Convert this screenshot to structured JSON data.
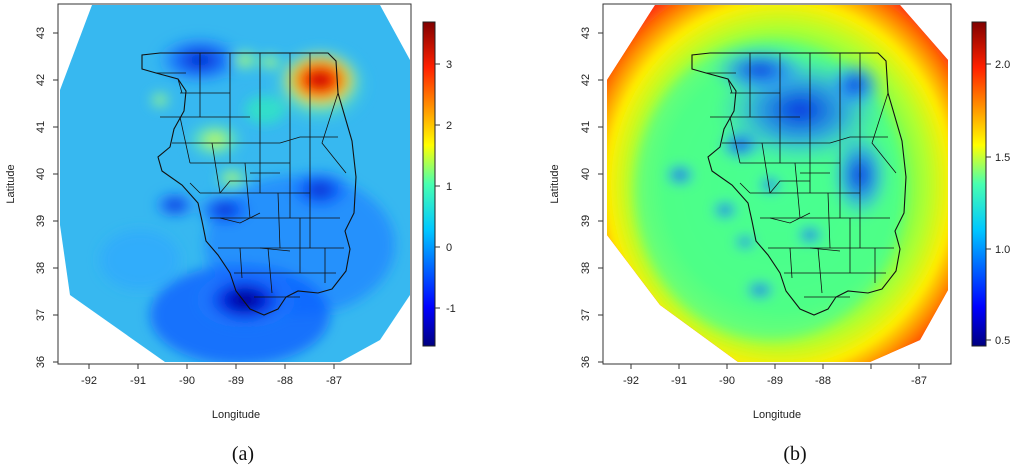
{
  "panels": [
    {
      "id": "a",
      "caption": "(a)",
      "xlabel": "Longitude",
      "ylabel": "Latitude",
      "x_ticks": [
        "-92",
        "-91",
        "-90",
        "-89",
        "-88",
        "-87"
      ],
      "y_ticks": [
        "36",
        "37",
        "38",
        "39",
        "40",
        "41",
        "42",
        "43"
      ],
      "colorbar_ticks": [
        "3",
        "2",
        "1",
        "0",
        "-1"
      ],
      "colorbar_range": [
        -1.7,
        3.6
      ],
      "colormap": "jet",
      "background_color": "#37b8f0"
    },
    {
      "id": "b",
      "caption": "(b)",
      "xlabel": "Longitude",
      "ylabel": "Latitude",
      "x_ticks": [
        "-92",
        "-91",
        "-90",
        "-89",
        "-88",
        "-87"
      ],
      "y_ticks": [
        "36",
        "37",
        "38",
        "39",
        "40",
        "41",
        "42",
        "43"
      ],
      "colorbar_ticks": [
        "2.0",
        "1.5",
        "1.0",
        "0.5"
      ],
      "colorbar_range": [
        0.4,
        2.2
      ],
      "colormap": "jet",
      "background_color": "#ff2a10"
    }
  ],
  "chart_data": [
    {
      "type": "heatmap",
      "title": "",
      "xlabel": "Longitude",
      "ylabel": "Latitude",
      "xlim": [
        -92.4,
        -86.5
      ],
      "ylim": [
        36.0,
        43.5
      ],
      "colorbar": {
        "min": -1.7,
        "max": 3.6,
        "ticks": [
          3,
          2,
          1,
          0,
          -1
        ]
      },
      "grid": false,
      "region": "Illinois counties"
    },
    {
      "type": "heatmap",
      "title": "",
      "xlabel": "Longitude",
      "ylabel": "Latitude",
      "xlim": [
        -92.4,
        -86.5
      ],
      "ylim": [
        36.0,
        43.5
      ],
      "colorbar": {
        "min": 0.4,
        "max": 2.2,
        "ticks": [
          2.0,
          1.5,
          1.0,
          0.5
        ]
      },
      "grid": false,
      "region": "Illinois counties"
    }
  ]
}
